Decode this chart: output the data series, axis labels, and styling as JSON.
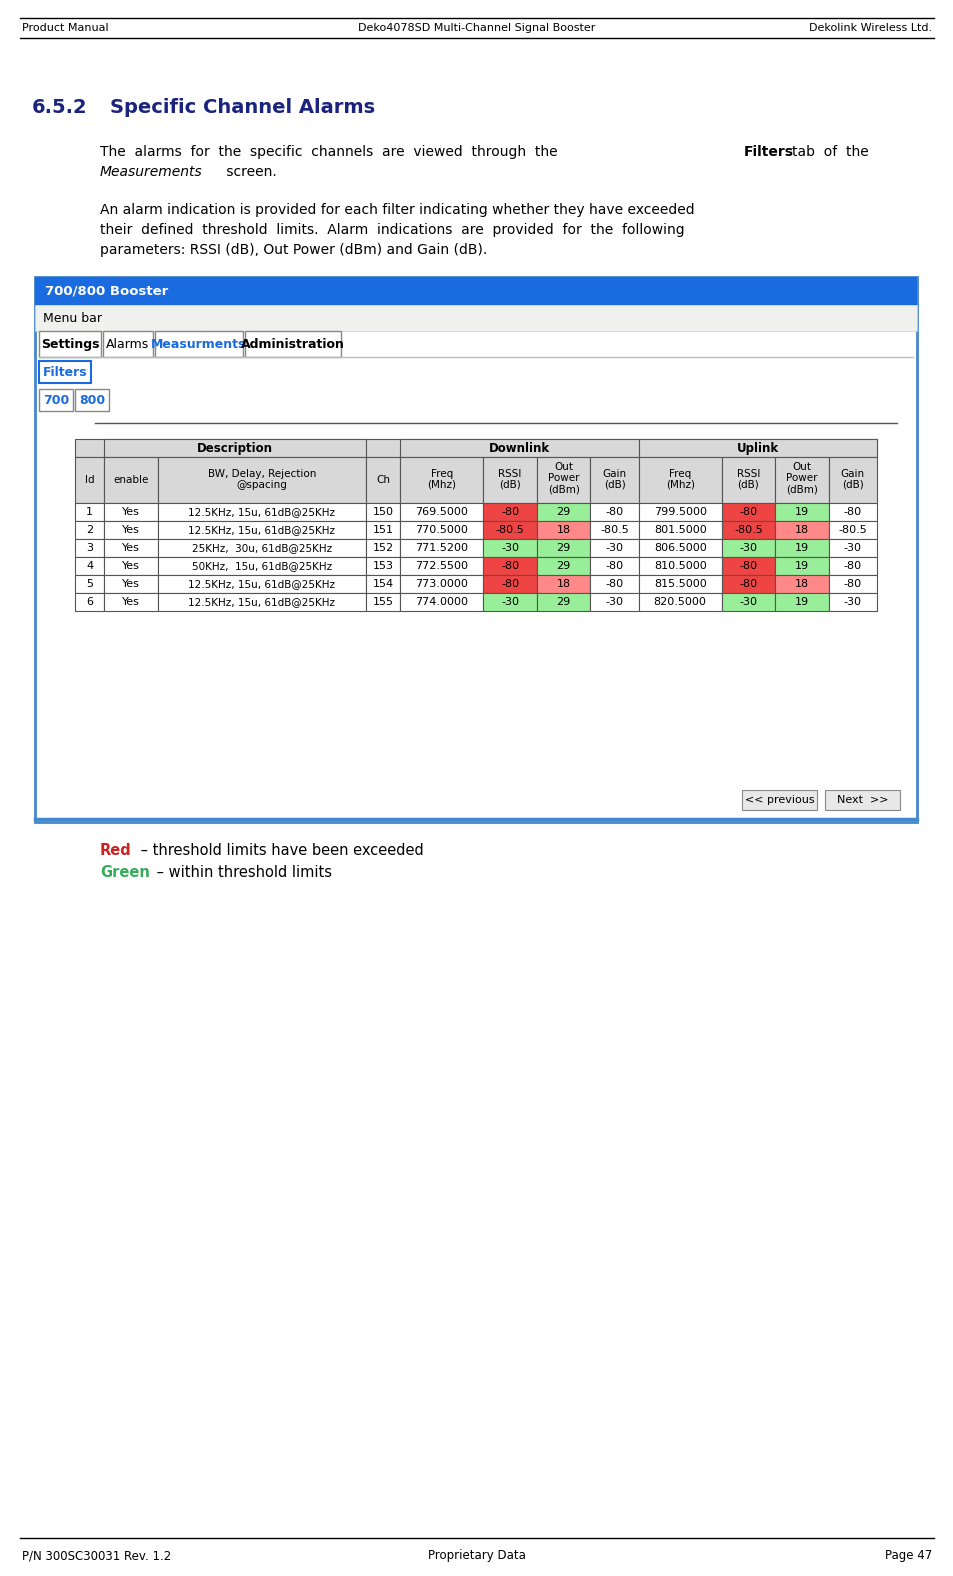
{
  "header_left": "Product Manual",
  "header_center": "Deko4078SD Multi-Channel Signal Booster",
  "header_right": "Dekolink Wireless Ltd.",
  "footer_left": "P/N 300SC30031 Rev. 1.2",
  "footer_center": "Proprietary Data",
  "footer_right": "Page 47",
  "section_number": "6.5.2",
  "section_title": "Specific Channel Alarms",
  "title_color": "#1a237e",
  "blue_bg": "#1a6be0",
  "tab_blue": "#1a6be0",
  "green_color": "#3aaa5c",
  "red_color": "#cc2222",
  "window_title": "700/800 Booster",
  "menu_bar": "Menu bar",
  "tab_settings": "Settings",
  "tab_alarms": "Alarms",
  "tab_measurements": "Measurments",
  "tab_administration": "Administration",
  "tab_filters": "Filters",
  "btn_700": "700",
  "btn_800": "800",
  "rows": [
    [
      "1",
      "Yes",
      "12.5KHz, 15u, 61dB@25KHz",
      "150",
      "769.5000",
      "-80",
      "29",
      "-80",
      "799.5000",
      "-80",
      "19",
      "-80"
    ],
    [
      "2",
      "Yes",
      "12.5KHz, 15u, 61dB@25KHz",
      "151",
      "770.5000",
      "-80.5",
      "18",
      "-80.5",
      "801.5000",
      "-80.5",
      "18",
      "-80.5"
    ],
    [
      "3",
      "Yes",
      "25KHz,  30u, 61dB@25KHz",
      "152",
      "771.5200",
      "-30",
      "29",
      "-30",
      "806.5000",
      "-30",
      "19",
      "-30"
    ],
    [
      "4",
      "Yes",
      "50KHz,  15u, 61dB@25KHz",
      "153",
      "772.5500",
      "-80",
      "29",
      "-80",
      "810.5000",
      "-80",
      "19",
      "-80"
    ],
    [
      "5",
      "Yes",
      "12.5KHz, 15u, 61dB@25KHz",
      "154",
      "773.0000",
      "-80",
      "18",
      "-80",
      "815.5000",
      "-80",
      "18",
      "-80"
    ],
    [
      "6",
      "Yes",
      "12.5KHz, 15u, 61dB@25KHz",
      "155",
      "774.0000",
      "-30",
      "29",
      "-30",
      "820.5000",
      "-30",
      "19",
      "-30"
    ]
  ],
  "row_cell_colors": [
    [
      "w",
      "w",
      "w",
      "w",
      "w",
      "#ee4444",
      "#99ee99",
      "w",
      "w",
      "#ee4444",
      "#99ee99",
      "w"
    ],
    [
      "w",
      "w",
      "w",
      "w",
      "w",
      "#ee4444",
      "#ff8888",
      "w",
      "w",
      "#ee4444",
      "#ff8888",
      "w"
    ],
    [
      "w",
      "w",
      "w",
      "w",
      "w",
      "#99ee99",
      "#99ee99",
      "w",
      "w",
      "#99ee99",
      "#99ee99",
      "w"
    ],
    [
      "w",
      "w",
      "w",
      "w",
      "w",
      "#ee4444",
      "#99ee99",
      "w",
      "w",
      "#ee4444",
      "#99ee99",
      "w"
    ],
    [
      "w",
      "w",
      "w",
      "w",
      "w",
      "#ee4444",
      "#ff8888",
      "w",
      "w",
      "#ee4444",
      "#ff8888",
      "w"
    ],
    [
      "w",
      "w",
      "w",
      "w",
      "w",
      "#99ee99",
      "#99ee99",
      "w",
      "w",
      "#99ee99",
      "#99ee99",
      "w"
    ]
  ]
}
